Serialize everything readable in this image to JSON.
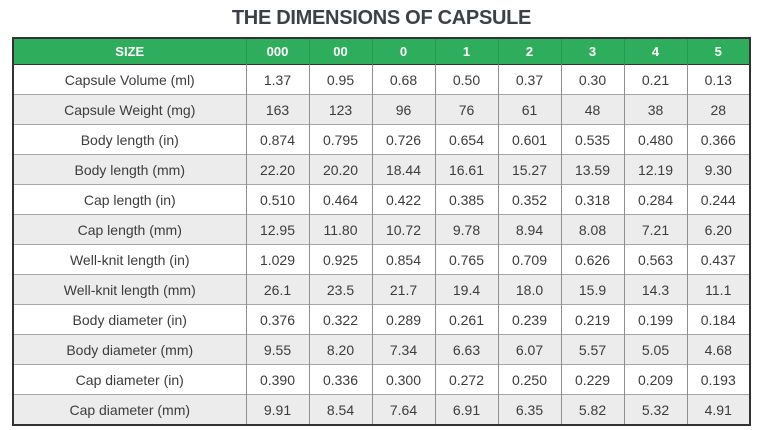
{
  "title": "THE DIMENSIONS OF CAPSULE",
  "colors": {
    "header_bg": "#2ead5c",
    "header_text": "#ffffff",
    "row_alt_bg": "#ececec",
    "outer_border": "#333333",
    "inner_border_vertical": "#8f8f8f",
    "inner_border_horizontal": "#a6a6a6",
    "body_text": "#3c3c3c",
    "title_text": "#3b4147"
  },
  "chart_data": {
    "type": "table",
    "title": "THE DIMENSIONS OF CAPSULE",
    "columns": [
      "SIZE",
      "000",
      "00",
      "0",
      "1",
      "2",
      "3",
      "4",
      "5"
    ],
    "rows": [
      {
        "label": "Capsule Volume (ml)",
        "values": [
          "1.37",
          "0.95",
          "0.68",
          "0.50",
          "0.37",
          "0.30",
          "0.21",
          "0.13"
        ]
      },
      {
        "label": "Capsule Weight (mg)",
        "values": [
          "163",
          "123",
          "96",
          "76",
          "61",
          "48",
          "38",
          "28"
        ]
      },
      {
        "label": "Body length (in)",
        "values": [
          "0.874",
          "0.795",
          "0.726",
          "0.654",
          "0.601",
          "0.535",
          "0.480",
          "0.366"
        ]
      },
      {
        "label": "Body length (mm)",
        "values": [
          "22.20",
          "20.20",
          "18.44",
          "16.61",
          "15.27",
          "13.59",
          "12.19",
          "9.30"
        ]
      },
      {
        "label": "Cap length (in)",
        "values": [
          "0.510",
          "0.464",
          "0.422",
          "0.385",
          "0.352",
          "0.318",
          "0.284",
          "0.244"
        ]
      },
      {
        "label": "Cap length (mm)",
        "values": [
          "12.95",
          "11.80",
          "10.72",
          "9.78",
          "8.94",
          "8.08",
          "7.21",
          "6.20"
        ]
      },
      {
        "label": "Well-knit length (in)",
        "values": [
          "1.029",
          "0.925",
          "0.854",
          "0.765",
          "0.709",
          "0.626",
          "0.563",
          "0.437"
        ]
      },
      {
        "label": "Well-knit length (mm)",
        "values": [
          "26.1",
          "23.5",
          "21.7",
          "19.4",
          "18.0",
          "15.9",
          "14.3",
          "11.1"
        ]
      },
      {
        "label": "Body diameter (in)",
        "values": [
          "0.376",
          "0.322",
          "0.289",
          "0.261",
          "0.239",
          "0.219",
          "0.199",
          "0.184"
        ]
      },
      {
        "label": "Body diameter (mm)",
        "values": [
          "9.55",
          "8.20",
          "7.34",
          "6.63",
          "6.07",
          "5.57",
          "5.05",
          "4.68"
        ]
      },
      {
        "label": "Cap diameter (in)",
        "values": [
          "0.390",
          "0.336",
          "0.300",
          "0.272",
          "0.250",
          "0.229",
          "0.209",
          "0.193"
        ]
      },
      {
        "label": "Cap diameter (mm)",
        "values": [
          "9.91",
          "8.54",
          "7.64",
          "6.91",
          "6.35",
          "5.82",
          "5.32",
          "4.91"
        ]
      }
    ]
  }
}
